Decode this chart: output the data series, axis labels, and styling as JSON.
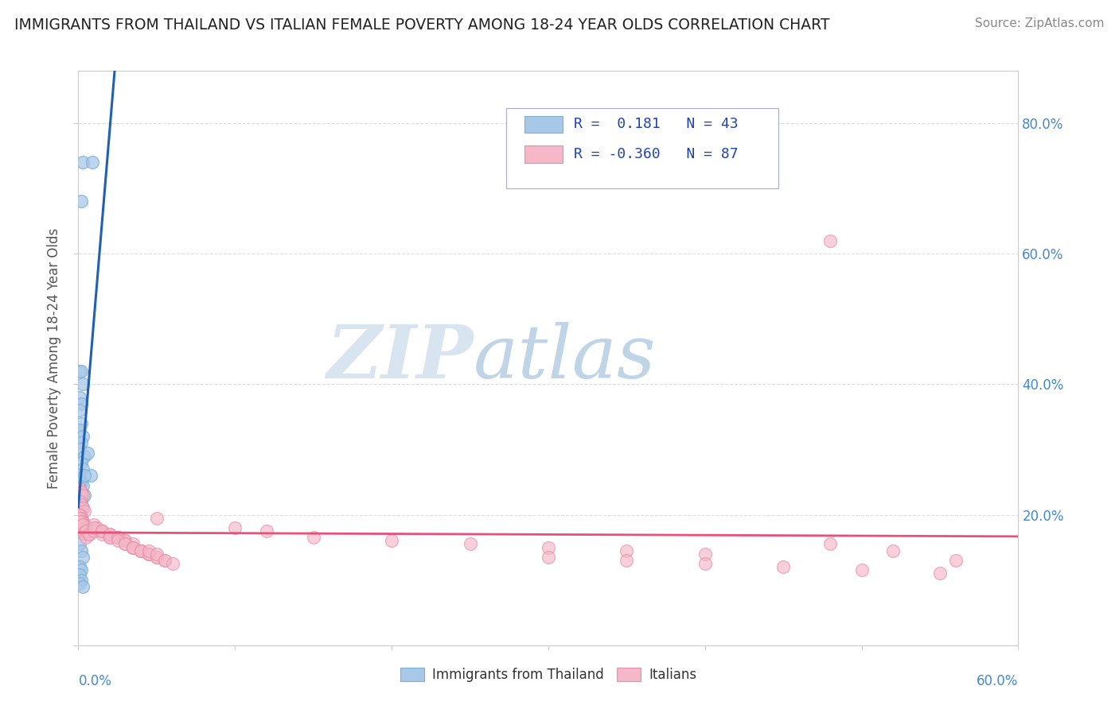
{
  "title": "IMMIGRANTS FROM THAILAND VS ITALIAN FEMALE POVERTY AMONG 18-24 YEAR OLDS CORRELATION CHART",
  "source": "Source: ZipAtlas.com",
  "legend_label1": "Immigrants from Thailand",
  "legend_label2": "Italians",
  "r1": "0.181",
  "n1": "43",
  "r2": "-0.360",
  "n2": "87",
  "color_blue": "#a8c8e8",
  "color_blue_edge": "#7bafd4",
  "color_pink": "#f4b8c8",
  "color_pink_edge": "#e890a8",
  "color_blue_line": "#2060b0",
  "color_blue_dashed": "#90b8d8",
  "color_pink_line": "#e8507a",
  "background_color": "#ffffff",
  "grid_color": "#c8c8c8",
  "watermark_color": "#d8e4f0",
  "watermark_color2": "#c0d4e8",
  "xlim": [
    0.0,
    0.6
  ],
  "ylim": [
    0.0,
    0.88
  ],
  "blue_x": [
    0.003,
    0.009,
    0.002,
    0.001,
    0.002,
    0.003,
    0.001,
    0.002,
    0.001,
    0.002,
    0.001,
    0.003,
    0.002,
    0.001,
    0.004,
    0.002,
    0.003,
    0.001,
    0.002,
    0.001,
    0.003,
    0.001,
    0.002,
    0.004,
    0.001,
    0.002,
    0.001,
    0.003,
    0.002,
    0.001,
    0.006,
    0.008,
    0.004,
    0.002,
    0.001,
    0.002,
    0.003,
    0.001,
    0.002,
    0.001,
    0.002,
    0.001,
    0.003
  ],
  "blue_y": [
    0.74,
    0.74,
    0.68,
    0.42,
    0.42,
    0.4,
    0.38,
    0.37,
    0.36,
    0.34,
    0.33,
    0.32,
    0.31,
    0.3,
    0.29,
    0.28,
    0.27,
    0.26,
    0.25,
    0.25,
    0.245,
    0.24,
    0.235,
    0.23,
    0.225,
    0.22,
    0.215,
    0.21,
    0.205,
    0.2,
    0.295,
    0.26,
    0.26,
    0.23,
    0.155,
    0.145,
    0.135,
    0.12,
    0.115,
    0.108,
    0.1,
    0.095,
    0.09
  ],
  "pink_x": [
    0.001,
    0.002,
    0.003,
    0.001,
    0.002,
    0.003,
    0.004,
    0.001,
    0.002,
    0.003,
    0.001,
    0.002,
    0.003,
    0.004,
    0.005,
    0.001,
    0.002,
    0.003,
    0.004,
    0.005,
    0.006,
    0.001,
    0.002,
    0.003,
    0.005,
    0.007,
    0.001,
    0.003,
    0.005,
    0.007,
    0.01,
    0.012,
    0.015,
    0.01,
    0.015,
    0.02,
    0.01,
    0.015,
    0.02,
    0.025,
    0.015,
    0.02,
    0.025,
    0.03,
    0.02,
    0.025,
    0.03,
    0.035,
    0.025,
    0.03,
    0.035,
    0.04,
    0.03,
    0.035,
    0.04,
    0.045,
    0.035,
    0.04,
    0.045,
    0.05,
    0.04,
    0.045,
    0.05,
    0.055,
    0.045,
    0.05,
    0.055,
    0.06,
    0.05,
    0.1,
    0.12,
    0.15,
    0.2,
    0.25,
    0.3,
    0.35,
    0.4,
    0.3,
    0.35,
    0.4,
    0.45,
    0.5,
    0.55,
    0.48,
    0.52,
    0.56,
    0.48
  ],
  "pink_y": [
    0.24,
    0.235,
    0.23,
    0.22,
    0.215,
    0.21,
    0.205,
    0.2,
    0.195,
    0.19,
    0.185,
    0.18,
    0.175,
    0.17,
    0.165,
    0.2,
    0.195,
    0.19,
    0.185,
    0.18,
    0.175,
    0.195,
    0.19,
    0.185,
    0.18,
    0.17,
    0.19,
    0.185,
    0.175,
    0.17,
    0.185,
    0.18,
    0.175,
    0.175,
    0.17,
    0.165,
    0.18,
    0.175,
    0.17,
    0.165,
    0.175,
    0.17,
    0.165,
    0.16,
    0.165,
    0.165,
    0.16,
    0.155,
    0.16,
    0.155,
    0.15,
    0.145,
    0.155,
    0.15,
    0.145,
    0.14,
    0.15,
    0.145,
    0.14,
    0.135,
    0.145,
    0.14,
    0.135,
    0.13,
    0.145,
    0.14,
    0.13,
    0.125,
    0.195,
    0.18,
    0.175,
    0.165,
    0.16,
    0.155,
    0.15,
    0.145,
    0.14,
    0.135,
    0.13,
    0.125,
    0.12,
    0.115,
    0.11,
    0.155,
    0.145,
    0.13,
    0.62
  ],
  "figsize": [
    14.06,
    8.92
  ],
  "dpi": 100
}
